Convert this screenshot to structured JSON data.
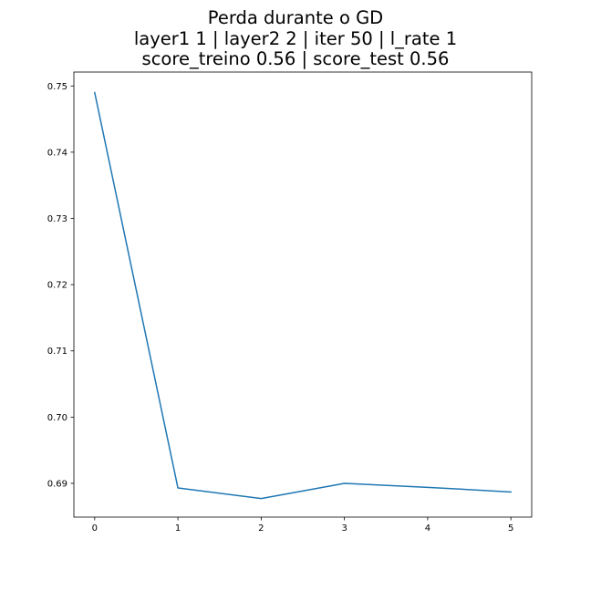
{
  "chart_data": {
    "type": "line",
    "title_lines": [
      "Perda durante o GD",
      "layer1 1 | layer2 2 | iter 50 | l_rate 1",
      "score_treino 0.56 | score_test 0.56"
    ],
    "xlabel": "",
    "ylabel": "",
    "x": [
      0,
      1,
      2,
      3,
      4,
      5
    ],
    "series": [
      {
        "values": [
          0.749,
          0.6893,
          0.6877,
          0.69,
          0.6894,
          0.6887
        ],
        "color": "#1f77b4"
      }
    ],
    "xlim": [
      -0.25,
      5.25
    ],
    "ylim": [
      0.6849,
      0.7521
    ],
    "xticks": [
      0,
      1,
      2,
      3,
      4,
      5
    ],
    "xtick_labels": [
      "0",
      "1",
      "2",
      "3",
      "4",
      "5"
    ],
    "yticks": [
      0.69,
      0.7,
      0.71,
      0.72,
      0.73,
      0.74,
      0.75
    ],
    "ytick_labels": [
      "0.69",
      "0.70",
      "0.71",
      "0.72",
      "0.73",
      "0.74",
      "0.75"
    ],
    "grid": false,
    "legend": "none"
  }
}
